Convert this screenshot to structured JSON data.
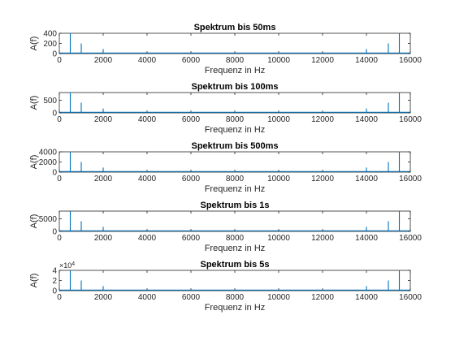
{
  "figure": {
    "background": "#ffffff",
    "line_color": "#0072bd",
    "axes_color": "#262626"
  },
  "chart_data": [
    {
      "type": "line",
      "title": "Spektrum bis 50ms",
      "xlabel": "Frequenz in Hz",
      "ylabel": "A(f)",
      "xlim": [
        0,
        16000
      ],
      "ylim": [
        0,
        400
      ],
      "xticks": [
        "0",
        "2000",
        "4000",
        "6000",
        "8000",
        "10000",
        "12000",
        "14000",
        "16000"
      ],
      "yticks": [
        "0",
        "200",
        "400"
      ],
      "yexponent": "",
      "series": [
        {
          "x": [
            500,
            1000,
            2000,
            14000,
            15000,
            15500
          ],
          "y": [
            400,
            200,
            90,
            90,
            200,
            400
          ]
        }
      ]
    },
    {
      "type": "line",
      "title": "Spektrum bis 100ms",
      "xlabel": "Frequenz in Hz",
      "ylabel": "A(f)",
      "xlim": [
        0,
        16000
      ],
      "ylim": [
        0,
        800
      ],
      "xticks": [
        "0",
        "2000",
        "4000",
        "6000",
        "8000",
        "10000",
        "12000",
        "14000",
        "16000"
      ],
      "yticks": [
        "0",
        "500"
      ],
      "yexponent": "",
      "series": [
        {
          "x": [
            500,
            1000,
            2000,
            14000,
            15000,
            15500
          ],
          "y": [
            800,
            400,
            170,
            170,
            400,
            800
          ]
        }
      ]
    },
    {
      "type": "line",
      "title": "Spektrum bis 500ms",
      "xlabel": "Frequenz in Hz",
      "ylabel": "A(f)",
      "xlim": [
        0,
        16000
      ],
      "ylim": [
        0,
        4000
      ],
      "xticks": [
        "0",
        "2000",
        "4000",
        "6000",
        "8000",
        "10000",
        "12000",
        "14000",
        "16000"
      ],
      "yticks": [
        "0",
        "2000",
        "4000"
      ],
      "yexponent": "",
      "series": [
        {
          "x": [
            500,
            1000,
            2000,
            14000,
            15000,
            15500
          ],
          "y": [
            4000,
            2000,
            900,
            900,
            2000,
            4000
          ]
        }
      ]
    },
    {
      "type": "line",
      "title": "Spektrum bis 1s",
      "xlabel": "Frequenz in Hz",
      "ylabel": "A(f)",
      "xlim": [
        0,
        16000
      ],
      "ylim": [
        0,
        8000
      ],
      "xticks": [
        "0",
        "2000",
        "4000",
        "6000",
        "8000",
        "10000",
        "12000",
        "14000",
        "16000"
      ],
      "yticks": [
        "0",
        "5000"
      ],
      "yexponent": "",
      "series": [
        {
          "x": [
            500,
            1000,
            2000,
            14000,
            15000,
            15500
          ],
          "y": [
            8000,
            4000,
            1800,
            1800,
            4000,
            8000
          ]
        }
      ]
    },
    {
      "type": "line",
      "title": "Spektrum bis 5s",
      "xlabel": "Frequenz in Hz",
      "ylabel": "A(f)",
      "xlim": [
        0,
        16000
      ],
      "ylim": [
        0,
        40000
      ],
      "xticks": [
        "0",
        "2000",
        "4000",
        "6000",
        "8000",
        "10000",
        "12000",
        "14000",
        "16000"
      ],
      "yticks": [
        "0",
        "2",
        "4"
      ],
      "yexponent": "×10",
      "yexponent_power": "4",
      "series": [
        {
          "x": [
            500,
            1000,
            2000,
            14000,
            15000,
            15500
          ],
          "y": [
            40000,
            20000,
            9000,
            9000,
            20000,
            40000
          ]
        }
      ]
    }
  ]
}
